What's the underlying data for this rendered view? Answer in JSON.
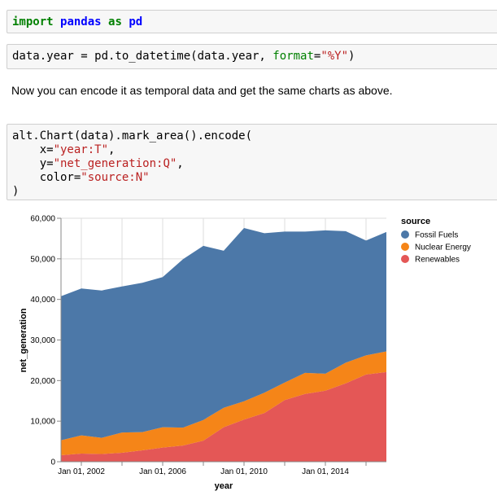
{
  "cells": {
    "cell1": {
      "kw_import": "import",
      "module": "pandas",
      "kw_as": "as",
      "alias": "pd"
    },
    "cell2": {
      "pre": "data.year = pd.to_datetime(data.year, ",
      "kwarg": "format",
      "eq": "=",
      "str": "\"%Y\"",
      "post": ")"
    },
    "markdown": "Now you can encode it as temporal data and get the same charts as above.",
    "cell3": {
      "line1": "alt.Chart(data).mark_area().encode(",
      "x_pre": "    x=",
      "x_str": "\"year:T\"",
      "x_post": ",",
      "y_pre": "    y=",
      "y_str": "\"net_generation:Q\"",
      "y_post": ",",
      "c_pre": "    color=",
      "c_str": "\"source:N\"",
      "close": ")"
    }
  },
  "chart_data": {
    "type": "area",
    "stacked": true,
    "x": [
      2001,
      2002,
      2003,
      2004,
      2005,
      2006,
      2007,
      2008,
      2009,
      2010,
      2011,
      2012,
      2013,
      2014,
      2015,
      2016,
      2017
    ],
    "series": [
      {
        "name": "Renewables",
        "color": "#e45756",
        "values": [
          1600,
          2000,
          1900,
          2200,
          2800,
          3500,
          4000,
          5200,
          8500,
          10400,
          12000,
          15200,
          16700,
          17500,
          19300,
          21500,
          22100
        ]
      },
      {
        "name": "Nuclear Energy",
        "color": "#f58518",
        "values": [
          3700,
          4500,
          4000,
          5000,
          4500,
          5000,
          4400,
          5100,
          4800,
          4500,
          5000,
          4300,
          5200,
          4200,
          5100,
          4700,
          5100
        ]
      },
      {
        "name": "Fossil Fuels",
        "color": "#4c78a8",
        "values": [
          35500,
          36200,
          36300,
          36000,
          36800,
          37000,
          41500,
          42900,
          38700,
          42700,
          39300,
          37200,
          34800,
          35300,
          32400,
          28300,
          29400
        ]
      }
    ],
    "xlabel": "year",
    "ylabel": "net_generation",
    "x_ticks": [
      "Jan 01, 2002",
      "Jan 01, 2006",
      "Jan 01, 2010",
      "Jan 01, 2014"
    ],
    "y_ticks": [
      "0",
      "10,000",
      "20,000",
      "30,000",
      "40,000",
      "50,000",
      "60,000"
    ],
    "ylim": [
      0,
      60000
    ],
    "legend_title": "source",
    "legend_placement": "right",
    "grid": true
  }
}
